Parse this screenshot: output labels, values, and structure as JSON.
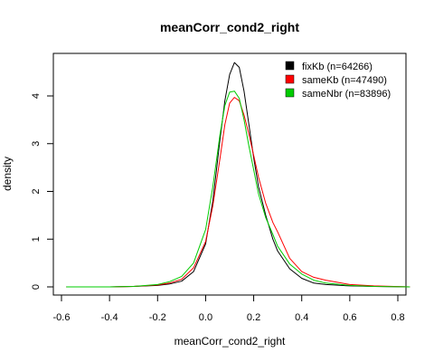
{
  "chart_data": {
    "type": "line",
    "title": "meanCorr_cond2_right",
    "xlabel": "meanCorr_cond2_right",
    "ylabel": "density",
    "xlim": [
      -0.6,
      0.85
    ],
    "ylim": [
      0,
      4.8
    ],
    "xticks": [
      -0.6,
      -0.4,
      -0.2,
      0.0,
      0.2,
      0.4,
      0.6,
      0.8
    ],
    "xtick_labels": [
      "-0.6",
      "-0.4",
      "-0.2",
      "0.0",
      "0.2",
      "0.4",
      "0.6",
      "0.8"
    ],
    "yticks": [
      0,
      1,
      2,
      3,
      4
    ],
    "ytick_labels": [
      "0",
      "1",
      "2",
      "3",
      "4"
    ],
    "legend_position": "top-right",
    "grid": false,
    "series": [
      {
        "name": "fixKb (n=64266)",
        "color": "#000000",
        "x": [
          -0.58,
          -0.4,
          -0.3,
          -0.2,
          -0.15,
          -0.1,
          -0.05,
          0.0,
          0.03,
          0.06,
          0.08,
          0.1,
          0.12,
          0.14,
          0.16,
          0.18,
          0.2,
          0.22,
          0.25,
          0.28,
          0.3,
          0.35,
          0.4,
          0.45,
          0.5,
          0.6,
          0.7,
          0.85
        ],
        "y": [
          0.0,
          0.0,
          0.01,
          0.03,
          0.06,
          0.12,
          0.32,
          0.9,
          1.8,
          3.1,
          3.9,
          4.45,
          4.7,
          4.6,
          4.1,
          3.4,
          2.7,
          2.1,
          1.5,
          1.0,
          0.75,
          0.38,
          0.18,
          0.08,
          0.05,
          0.02,
          0.01,
          0.0
        ]
      },
      {
        "name": "sameKb (n=47490)",
        "color": "#ff0000",
        "x": [
          -0.58,
          -0.4,
          -0.3,
          -0.2,
          -0.15,
          -0.1,
          -0.05,
          0.0,
          0.03,
          0.06,
          0.08,
          0.1,
          0.12,
          0.14,
          0.16,
          0.18,
          0.2,
          0.22,
          0.25,
          0.28,
          0.3,
          0.35,
          0.4,
          0.45,
          0.5,
          0.6,
          0.7,
          0.85
        ],
        "y": [
          0.0,
          0.0,
          0.01,
          0.04,
          0.08,
          0.16,
          0.4,
          0.95,
          1.7,
          2.7,
          3.4,
          3.85,
          3.97,
          3.9,
          3.6,
          3.2,
          2.75,
          2.3,
          1.75,
          1.35,
          1.15,
          0.6,
          0.32,
          0.2,
          0.14,
          0.05,
          0.02,
          0.0
        ]
      },
      {
        "name": "sameNbr (n=83896)",
        "color": "#00cc00",
        "x": [
          -0.58,
          -0.4,
          -0.3,
          -0.2,
          -0.15,
          -0.1,
          -0.05,
          0.0,
          0.03,
          0.06,
          0.08,
          0.1,
          0.12,
          0.14,
          0.16,
          0.18,
          0.2,
          0.22,
          0.25,
          0.28,
          0.3,
          0.35,
          0.4,
          0.45,
          0.5,
          0.6,
          0.7,
          0.85
        ],
        "y": [
          0.0,
          0.0,
          0.01,
          0.05,
          0.11,
          0.22,
          0.5,
          1.2,
          2.1,
          3.2,
          3.8,
          4.08,
          4.1,
          3.95,
          3.5,
          2.95,
          2.45,
          1.95,
          1.45,
          1.1,
          0.85,
          0.48,
          0.27,
          0.14,
          0.08,
          0.03,
          0.01,
          0.0
        ]
      }
    ]
  }
}
